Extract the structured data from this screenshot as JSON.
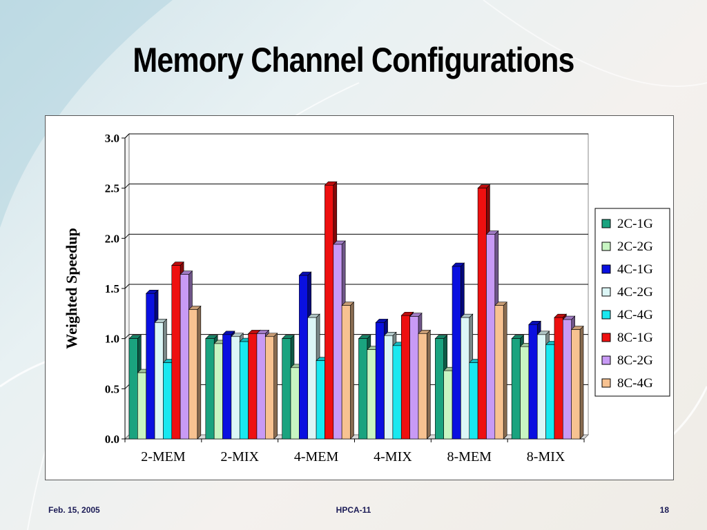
{
  "slide": {
    "title": "Memory Channel Configurations",
    "footer_left": "Feb. 15, 2005",
    "footer_center": "HPCA-11",
    "footer_right": "18"
  },
  "chart_data": {
    "type": "bar",
    "title": "",
    "xlabel": "",
    "ylabel": "Weighted Speedup",
    "ylim": [
      0,
      3.0
    ],
    "yticks": [
      "0.0",
      "0.5",
      "1.0",
      "1.5",
      "2.0",
      "2.5",
      "3.0"
    ],
    "grid": true,
    "legend_position": "right",
    "categories": [
      "2-MEM",
      "2-MIX",
      "4-MEM",
      "4-MIX",
      "8-MEM",
      "8-MIX"
    ],
    "series": [
      {
        "name": "2C-1G",
        "color": "#1aa37f",
        "values": [
          1.0,
          1.0,
          1.0,
          1.0,
          1.0,
          1.0
        ]
      },
      {
        "name": "2C-2G",
        "color": "#c8f5c2",
        "values": [
          0.66,
          0.95,
          0.71,
          0.89,
          0.68,
          0.92
        ]
      },
      {
        "name": "4C-1G",
        "color": "#0a10e0",
        "values": [
          1.45,
          1.04,
          1.63,
          1.16,
          1.72,
          1.14
        ]
      },
      {
        "name": "4C-2G",
        "color": "#dcf6f6",
        "values": [
          1.16,
          1.02,
          1.21,
          1.03,
          1.21,
          1.04
        ]
      },
      {
        "name": "4C-4G",
        "color": "#19e8f0",
        "values": [
          0.76,
          0.97,
          0.78,
          0.93,
          0.76,
          0.94
        ]
      },
      {
        "name": "8C-1G",
        "color": "#ee1010",
        "values": [
          1.73,
          1.05,
          2.53,
          1.23,
          2.5,
          1.21
        ]
      },
      {
        "name": "8C-2G",
        "color": "#c89af5",
        "values": [
          1.64,
          1.05,
          1.94,
          1.22,
          2.04,
          1.19
        ]
      },
      {
        "name": "8C-4G",
        "color": "#f7c291",
        "values": [
          1.29,
          1.02,
          1.33,
          1.05,
          1.33,
          1.09
        ]
      }
    ]
  }
}
